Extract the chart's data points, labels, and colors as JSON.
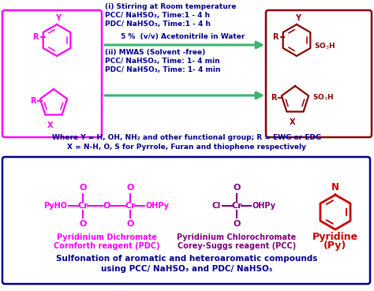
{
  "bg_color": "#ffffff",
  "top_box_left_color": "#ff00ff",
  "top_box_right_color": "#8b0000",
  "bottom_box_color": "#00008b",
  "arrow_color": "#3cb371",
  "reaction_text_color": "#00008b",
  "where_text_color": "#00008b",
  "footer_color": "#00008b",
  "pdc_color": "#ff00ff",
  "pcc_color": "#800080",
  "pyridine_color": "#cc0000",
  "title_line1": "Sulfonation of aromatic and heteroaromatic compounds",
  "title_line2": "using PCC/ NaHSO₃ and PDC/ NaHSO₃",
  "where_line1": "Where Y = H, OH, NH₂ and other functional group; R = EWG or EDG",
  "where_line2": "X = N-H, O, S for Pyrrole, Furan and thiophene respectively",
  "rxn_i_line1": "(i) Stirring at Room temperature",
  "rxn_i_line2": "PCC/ NaHSO₃, Time:1 - 4 h",
  "rxn_i_line3": "PDC/ NaHSO₃, Time:1 - 4 h",
  "rxn_mid": "5 %  (v/v) Acetonitrile in Water",
  "rxn_ii_line1": "(ii) MWAS (Solvent -free)",
  "rxn_ii_line2": "PCC/ NaHSO₃, Time: 1- 4 min",
  "rxn_ii_line3": "PDC/ NaHSO₃, Time: 1- 4 min",
  "pdc_label1": "Pyridinium Dichromate",
  "pdc_label2": "Cornforth reagent (PDC)",
  "pcc_label1": "Pyridinium Chlorochromate",
  "pcc_label2": "Corey-Suggs reagent (PCC)",
  "py_label1": "Pyridine",
  "py_label2": "(Py)"
}
